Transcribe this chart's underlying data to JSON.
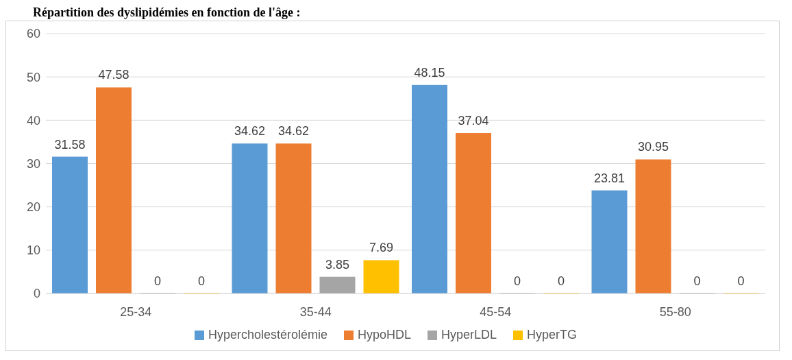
{
  "chart_data": {
    "type": "bar",
    "title": "Répartition des dyslipidémies en fonction de l'âge :",
    "categories": [
      "25-34",
      "35-44",
      "45-54",
      "55-80"
    ],
    "series": [
      {
        "name": "Hypercholestérolémie",
        "color": "#5b9bd5",
        "values": [
          31.58,
          34.62,
          48.15,
          23.81
        ]
      },
      {
        "name": "HypoHDL",
        "color": "#ed7d31",
        "values": [
          47.58,
          34.62,
          37.04,
          30.95
        ]
      },
      {
        "name": "HyperLDL",
        "color": "#a5a5a5",
        "values": [
          0,
          3.85,
          0,
          0
        ]
      },
      {
        "name": "HyperTG",
        "color": "#ffc000",
        "values": [
          0,
          7.69,
          0,
          0
        ]
      }
    ],
    "ylim": [
      0,
      60
    ],
    "yticks": [
      0,
      10,
      20,
      30,
      40,
      50,
      60
    ],
    "grid": "y",
    "legend": "bottom",
    "data_labels": true
  }
}
